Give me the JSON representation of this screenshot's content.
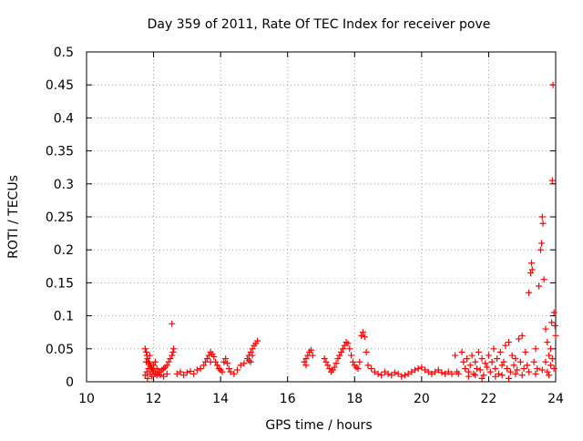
{
  "chart_data": {
    "type": "scatter",
    "title": "Day 359 of 2011, Rate Of TEC Index for receiver pove",
    "xlabel": "GPS time / hours",
    "ylabel": "ROTI / TECUs",
    "xlim": [
      10,
      24
    ],
    "ylim": [
      0,
      0.5
    ],
    "x_ticks": [
      10,
      12,
      14,
      16,
      18,
      20,
      22,
      24
    ],
    "x_tick_labels": [
      "10",
      "12",
      "14",
      "16",
      "18",
      "20",
      "22",
      "24"
    ],
    "y_ticks": [
      0,
      0.05,
      0.1,
      0.15,
      0.2,
      0.25,
      0.3,
      0.35,
      0.4,
      0.45,
      0.5
    ],
    "y_tick_labels": [
      "0",
      "0.05",
      "0.1",
      "0.15",
      "0.2",
      "0.25",
      "0.3",
      "0.35",
      "0.4",
      "0.45",
      "0.5"
    ],
    "grid": true,
    "marker": "+",
    "marker_color": "#ff0000",
    "points": [
      [
        11.75,
        0.05
      ],
      [
        11.78,
        0.045
      ],
      [
        11.8,
        0.04
      ],
      [
        11.82,
        0.035
      ],
      [
        11.85,
        0.03
      ],
      [
        11.88,
        0.028
      ],
      [
        11.9,
        0.025
      ],
      [
        11.92,
        0.022
      ],
      [
        11.95,
        0.02
      ],
      [
        11.98,
        0.018
      ],
      [
        12.0,
        0.015
      ],
      [
        12.05,
        0.012
      ],
      [
        12.1,
        0.01
      ],
      [
        12.15,
        0.012
      ],
      [
        12.2,
        0.015
      ],
      [
        12.25,
        0.018
      ],
      [
        12.3,
        0.02
      ],
      [
        12.35,
        0.022
      ],
      [
        12.4,
        0.025
      ],
      [
        12.45,
        0.03
      ],
      [
        12.5,
        0.035
      ],
      [
        12.55,
        0.04
      ],
      [
        12.58,
        0.045
      ],
      [
        12.6,
        0.05
      ],
      [
        12.55,
        0.088
      ],
      [
        11.75,
        0.01
      ],
      [
        11.8,
        0.015
      ],
      [
        11.85,
        0.02
      ],
      [
        11.9,
        0.012
      ],
      [
        11.95,
        0.008
      ],
      [
        12.0,
        0.025
      ],
      [
        12.05,
        0.03
      ],
      [
        12.1,
        0.02
      ],
      [
        12.15,
        0.015
      ],
      [
        12.2,
        0.01
      ],
      [
        12.3,
        0.008
      ],
      [
        12.4,
        0.012
      ],
      [
        11.78,
        0.03
      ],
      [
        11.82,
        0.005
      ],
      [
        11.88,
        0.04
      ],
      [
        12.7,
        0.012
      ],
      [
        12.8,
        0.015
      ],
      [
        12.9,
        0.01
      ],
      [
        13.0,
        0.014
      ],
      [
        13.1,
        0.016
      ],
      [
        13.2,
        0.012
      ],
      [
        13.3,
        0.018
      ],
      [
        13.4,
        0.02
      ],
      [
        13.5,
        0.025
      ],
      [
        13.55,
        0.03
      ],
      [
        13.6,
        0.035
      ],
      [
        13.65,
        0.04
      ],
      [
        13.7,
        0.045
      ],
      [
        13.75,
        0.042
      ],
      [
        13.8,
        0.038
      ],
      [
        13.85,
        0.03
      ],
      [
        13.9,
        0.025
      ],
      [
        13.95,
        0.02
      ],
      [
        14.0,
        0.018
      ],
      [
        14.05,
        0.015
      ],
      [
        14.1,
        0.03
      ],
      [
        14.15,
        0.035
      ],
      [
        14.2,
        0.028
      ],
      [
        14.25,
        0.02
      ],
      [
        14.3,
        0.015
      ],
      [
        14.4,
        0.012
      ],
      [
        14.5,
        0.018
      ],
      [
        14.6,
        0.025
      ],
      [
        14.7,
        0.028
      ],
      [
        14.8,
        0.035
      ],
      [
        14.85,
        0.04
      ],
      [
        14.9,
        0.045
      ],
      [
        14.95,
        0.05
      ],
      [
        15.0,
        0.055
      ],
      [
        15.05,
        0.058
      ],
      [
        15.1,
        0.062
      ],
      [
        14.95,
        0.04
      ],
      [
        14.9,
        0.03
      ],
      [
        14.85,
        0.032
      ],
      [
        13.7,
        0.03
      ],
      [
        16.5,
        0.03
      ],
      [
        16.55,
        0.035
      ],
      [
        16.6,
        0.04
      ],
      [
        16.65,
        0.045
      ],
      [
        16.7,
        0.048
      ],
      [
        16.75,
        0.04
      ],
      [
        16.55,
        0.025
      ],
      [
        17.1,
        0.035
      ],
      [
        17.15,
        0.03
      ],
      [
        17.2,
        0.025
      ],
      [
        17.25,
        0.02
      ],
      [
        17.3,
        0.015
      ],
      [
        17.35,
        0.018
      ],
      [
        17.4,
        0.022
      ],
      [
        17.45,
        0.028
      ],
      [
        17.5,
        0.035
      ],
      [
        17.55,
        0.04
      ],
      [
        17.6,
        0.045
      ],
      [
        17.65,
        0.05
      ],
      [
        17.7,
        0.055
      ],
      [
        17.75,
        0.06
      ],
      [
        17.8,
        0.058
      ],
      [
        17.85,
        0.05
      ],
      [
        17.9,
        0.04
      ],
      [
        17.95,
        0.03
      ],
      [
        18.0,
        0.025
      ],
      [
        18.05,
        0.022
      ],
      [
        18.1,
        0.02
      ],
      [
        18.15,
        0.03
      ],
      [
        18.2,
        0.07
      ],
      [
        18.25,
        0.075
      ],
      [
        18.3,
        0.068
      ],
      [
        18.35,
        0.045
      ],
      [
        18.4,
        0.025
      ],
      [
        18.5,
        0.02
      ],
      [
        18.6,
        0.015
      ],
      [
        18.7,
        0.012
      ],
      [
        18.8,
        0.01
      ],
      [
        18.9,
        0.015
      ],
      [
        19.0,
        0.012
      ],
      [
        19.1,
        0.01
      ],
      [
        19.2,
        0.014
      ],
      [
        19.3,
        0.012
      ],
      [
        19.4,
        0.008
      ],
      [
        19.5,
        0.01
      ],
      [
        19.6,
        0.012
      ],
      [
        19.7,
        0.015
      ],
      [
        19.8,
        0.018
      ],
      [
        19.9,
        0.02
      ],
      [
        20.0,
        0.022
      ],
      [
        20.1,
        0.018
      ],
      [
        20.2,
        0.015
      ],
      [
        20.3,
        0.012
      ],
      [
        20.4,
        0.015
      ],
      [
        20.5,
        0.018
      ],
      [
        20.6,
        0.014
      ],
      [
        20.7,
        0.012
      ],
      [
        20.8,
        0.015
      ],
      [
        20.9,
        0.012
      ],
      [
        21.0,
        0.04
      ],
      [
        21.05,
        0.015
      ],
      [
        21.1,
        0.012
      ],
      [
        21.2,
        0.045
      ],
      [
        21.25,
        0.03
      ],
      [
        21.3,
        0.02
      ],
      [
        21.35,
        0.035
      ],
      [
        21.4,
        0.015
      ],
      [
        21.45,
        0.025
      ],
      [
        21.5,
        0.04
      ],
      [
        21.55,
        0.012
      ],
      [
        21.6,
        0.03
      ],
      [
        21.65,
        0.02
      ],
      [
        21.7,
        0.045
      ],
      [
        21.75,
        0.018
      ],
      [
        21.8,
        0.035
      ],
      [
        21.85,
        0.01
      ],
      [
        21.9,
        0.028
      ],
      [
        21.95,
        0.022
      ],
      [
        22.0,
        0.04
      ],
      [
        22.05,
        0.015
      ],
      [
        22.1,
        0.03
      ],
      [
        22.15,
        0.05
      ],
      [
        22.2,
        0.02
      ],
      [
        22.25,
        0.035
      ],
      [
        22.3,
        0.012
      ],
      [
        22.35,
        0.045
      ],
      [
        22.4,
        0.025
      ],
      [
        22.45,
        0.03
      ],
      [
        22.5,
        0.055
      ],
      [
        22.55,
        0.02
      ],
      [
        22.6,
        0.06
      ],
      [
        22.65,
        0.015
      ],
      [
        22.7,
        0.04
      ],
      [
        22.75,
        0.025
      ],
      [
        22.8,
        0.035
      ],
      [
        22.85,
        0.018
      ],
      [
        22.9,
        0.065
      ],
      [
        22.95,
        0.03
      ],
      [
        23.0,
        0.07
      ],
      [
        23.05,
        0.02
      ],
      [
        23.1,
        0.045
      ],
      [
        23.15,
        0.025
      ],
      [
        23.2,
        0.135
      ],
      [
        23.25,
        0.165
      ],
      [
        23.28,
        0.18
      ],
      [
        23.3,
        0.17
      ],
      [
        23.35,
        0.03
      ],
      [
        23.4,
        0.05
      ],
      [
        23.45,
        0.02
      ],
      [
        23.5,
        0.145
      ],
      [
        23.55,
        0.2
      ],
      [
        23.58,
        0.21
      ],
      [
        23.6,
        0.25
      ],
      [
        23.62,
        0.24
      ],
      [
        23.65,
        0.155
      ],
      [
        23.7,
        0.08
      ],
      [
        23.75,
        0.06
      ],
      [
        23.8,
        0.04
      ],
      [
        23.85,
        0.025
      ],
      [
        23.9,
        0.305
      ],
      [
        23.92,
        0.45
      ],
      [
        23.95,
        0.105
      ],
      [
        23.98,
        0.085
      ],
      [
        24.0,
        0.07
      ],
      [
        23.88,
        0.09
      ],
      [
        23.7,
        0.03
      ],
      [
        23.75,
        0.015
      ],
      [
        23.8,
        0.01
      ],
      [
        23.85,
        0.05
      ],
      [
        23.9,
        0.035
      ],
      [
        23.95,
        0.02
      ],
      [
        22.2,
        0.008
      ],
      [
        22.4,
        0.01
      ],
      [
        22.6,
        0.005
      ],
      [
        22.8,
        0.012
      ],
      [
        23.0,
        0.01
      ],
      [
        23.2,
        0.015
      ],
      [
        23.4,
        0.012
      ],
      [
        23.6,
        0.018
      ],
      [
        21.4,
        0.008
      ],
      [
        21.6,
        0.01
      ],
      [
        21.8,
        0.005
      ]
    ]
  }
}
